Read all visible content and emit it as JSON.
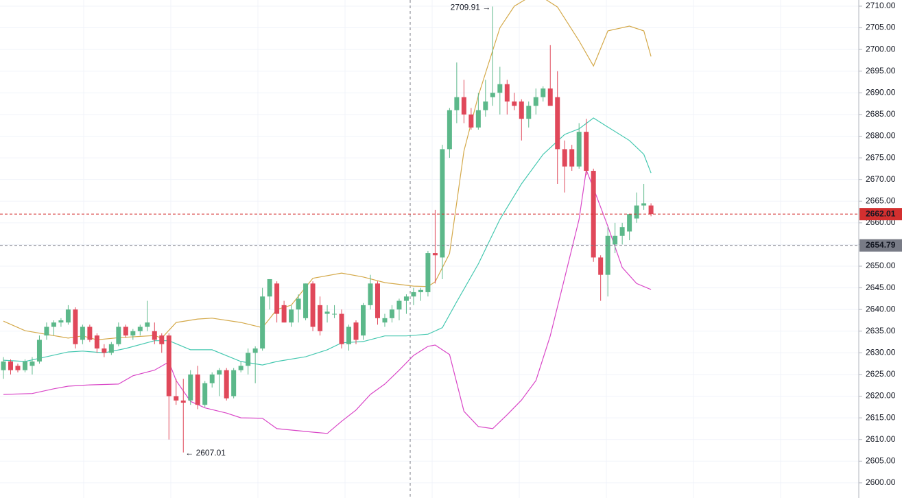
{
  "chart_data": {
    "type": "candlestick",
    "ylim": [
      2596.5,
      2711.42
    ],
    "yticks": [
      {
        "value": 2600,
        "label": "2600.00"
      },
      {
        "value": 2605,
        "label": "2605.00"
      },
      {
        "value": 2610,
        "label": "2610.00"
      },
      {
        "value": 2615,
        "label": "2615.00"
      },
      {
        "value": 2620,
        "label": "2620.00"
      },
      {
        "value": 2625,
        "label": "2625.00"
      },
      {
        "value": 2630,
        "label": "2630.00"
      },
      {
        "value": 2635,
        "label": "2635.00"
      },
      {
        "value": 2640,
        "label": "2640.00"
      },
      {
        "value": 2645,
        "label": "2645.00"
      },
      {
        "value": 2650,
        "label": "2650.00"
      },
      {
        "value": 2655,
        "label": "2655.00"
      },
      {
        "value": 2660,
        "label": "2660.00"
      },
      {
        "value": 2665,
        "label": "2665.00"
      },
      {
        "value": 2670,
        "label": "2670.00"
      },
      {
        "value": 2675,
        "label": "2675.00"
      },
      {
        "value": 2680,
        "label": "2680.00"
      },
      {
        "value": 2685,
        "label": "2685.00"
      },
      {
        "value": 2690,
        "label": "2690.00"
      },
      {
        "value": 2695,
        "label": "2695.00"
      },
      {
        "value": 2700,
        "label": "2700.00"
      },
      {
        "value": 2705,
        "label": "2705.00"
      },
      {
        "value": 2710,
        "label": "2710.00"
      }
    ],
    "grid": true,
    "up_color": "#5cb88a",
    "down_color": "#e0485a",
    "open": [
      2626,
      2628,
      2627,
      2626,
      2627,
      2628,
      2634,
      2636,
      2637,
      2637,
      2640,
      2633,
      2636,
      2634,
      2631,
      2630,
      2632,
      2636,
      2634,
      2635,
      2636,
      2635,
      2634,
      2634,
      2620,
      2619,
      2619,
      2625,
      2618,
      2623,
      2625,
      2626,
      2620,
      2626,
      2627,
      2630,
      2631,
      2643,
      2646,
      2641,
      2637,
      2640,
      2638,
      2646,
      2641,
      2639,
      2639,
      2639,
      2632,
      2637,
      2634,
      2641,
      2646,
      2637,
      2638,
      2640,
      2642,
      2643,
      2644,
      2644,
      2653,
      2652,
      2677,
      2686,
      2689,
      2685,
      2682,
      2686,
      2689,
      2690,
      2692,
      2688,
      2688,
      2684,
      2687,
      2689,
      2691,
      2689,
      2677,
      2677,
      2673,
      2681,
      2672,
      2652,
      2648,
      2655,
      2657,
      2658,
      2661,
      2664,
      2664
    ],
    "high": [
      2629,
      2628.5,
      2627.5,
      2628.5,
      2629,
      2634,
      2637,
      2637.5,
      2638,
      2641,
      2640.5,
      2636.5,
      2636.5,
      2634.5,
      2632,
      2632.5,
      2637,
      2636.5,
      2635.5,
      2636.5,
      2642,
      2637,
      2634.5,
      2634.5,
      2624,
      2624,
      2626,
      2627,
      2623.5,
      2625.5,
      2626.5,
      2626.5,
      2626.5,
      2628,
      2631,
      2631.5,
      2645,
      2647,
      2646.5,
      2642,
      2641,
      2643.5,
      2646,
      2646.5,
      2643,
      2641,
      2641,
      2640,
      2636.5,
      2637.5,
      2641.5,
      2648,
      2646.5,
      2639,
      2641,
      2642.5,
      2643.5,
      2645,
      2645,
      2653.5,
      2663,
      2678,
      2686.5,
      2697,
      2693,
      2686.5,
      2690,
      2693,
      2709.91,
      2696,
      2693,
      2690,
      2688.5,
      2688,
      2691,
      2691.5,
      2701,
      2695,
      2679,
      2678,
      2683,
      2684,
      2672.5,
      2652.5,
      2659,
      2660,
      2660,
      2662,
      2667,
      2669,
      2664.5
    ],
    "low": [
      2624,
      2625,
      2625.5,
      2625.5,
      2625,
      2627.5,
      2633,
      2634,
      2636,
      2636.5,
      2631,
      2632,
      2632.5,
      2630,
      2629,
      2629.5,
      2631.5,
      2633.5,
      2633,
      2634,
      2635,
      2632,
      2630,
      2610,
      2618,
      2607.01,
      2618,
      2617,
      2617.5,
      2622,
      2620,
      2619,
      2619.5,
      2625.5,
      2625,
      2623,
      2630.5,
      2640,
      2637,
      2637,
      2636,
      2637,
      2637.5,
      2635,
      2634,
      2637,
      2638,
      2631,
      2630.5,
      2632,
      2633,
      2640,
      2636.5,
      2636,
      2637,
      2637.5,
      2639,
      2641,
      2642,
      2643,
      2646,
      2647,
      2675,
      2683,
      2683,
      2681.5,
      2681.5,
      2684.5,
      2687,
      2685,
      2685,
      2686,
      2679,
      2682,
      2685,
      2688,
      2688,
      2669,
      2667,
      2672,
      2672.5,
      2671,
      2651,
      2642,
      2643,
      2653,
      2655,
      2656,
      2660,
      2663,
      2661.5
    ],
    "close": [
      2628,
      2626,
      2626,
      2628,
      2628,
      2633,
      2636,
      2637,
      2637.5,
      2640,
      2632,
      2636,
      2633,
      2631,
      2630,
      2632,
      2636,
      2634,
      2635,
      2636,
      2637,
      2633,
      2632,
      2620,
      2619,
      2618.5,
      2625,
      2618,
      2623,
      2625,
      2626,
      2619.5,
      2626,
      2627,
      2630,
      2631,
      2643,
      2647,
      2639,
      2637,
      2640,
      2642.5,
      2646,
      2636,
      2635,
      2639.5,
      2639,
      2632,
      2636,
      2633,
      2641,
      2646,
      2638,
      2638,
      2640,
      2642,
      2643,
      2644,
      2644.5,
      2653,
      2652.5,
      2677,
      2686,
      2689,
      2685,
      2682,
      2686,
      2688,
      2690,
      2692,
      2688,
      2687,
      2684,
      2687,
      2689,
      2691,
      2687,
      2677,
      2673,
      2673,
      2681,
      2672,
      2652,
      2648,
      2657,
      2657,
      2659,
      2662,
      2664,
      2664.5,
      2662.01
    ],
    "bands": [
      {
        "color": "#d4a94a",
        "x": [
          0,
          3,
          9,
          11,
          13,
          16,
          21,
          22,
          24,
          27,
          29,
          33,
          36,
          38,
          40,
          43,
          47,
          50,
          53,
          57,
          59,
          60,
          62,
          64,
          66,
          69,
          71,
          74,
          77,
          80,
          82,
          84,
          87,
          89,
          90
        ],
        "values": [
          2637.3,
          2635.1,
          2633.4,
          2633.9,
          2633.0,
          2633.5,
          2634.0,
          2633.4,
          2637.0,
          2637.8,
          2638.0,
          2637.0,
          2635.8,
          2640.0,
          2641.0,
          2647.2,
          2648.4,
          2647.5,
          2646.2,
          2645.4,
          2645.3,
          2646.4,
          2652.9,
          2676.6,
          2689.3,
          2705.0,
          2710.0,
          2713.0,
          2709.8,
          2702.0,
          2696.2,
          2704.3,
          2705.4,
          2704.3,
          2698.4
        ]
      },
      {
        "color": "#45c8b0",
        "x": [
          0,
          3,
          6,
          9,
          11,
          14,
          17,
          21,
          23,
          26,
          29,
          33,
          36,
          38,
          42,
          45,
          47,
          50,
          53,
          56,
          59,
          61,
          63,
          66,
          69,
          72,
          75,
          78,
          80,
          82,
          84,
          87,
          89,
          90
        ],
        "values": [
          2628.3,
          2628.0,
          2629.1,
          2630.2,
          2630.4,
          2630.0,
          2631.0,
          2632.8,
          2632.8,
          2630.7,
          2630.7,
          2628.0,
          2627.2,
          2628.0,
          2629.1,
          2630.7,
          2632.3,
          2632.6,
          2633.9,
          2633.9,
          2634.3,
          2635.8,
          2641.8,
          2650.5,
          2660.8,
          2669.0,
          2675.8,
          2680.4,
          2681.7,
          2684.2,
          2682.1,
          2679.0,
          2675.8,
          2671.5
        ]
      },
      {
        "color": "#d946c7",
        "x": [
          0,
          4,
          7,
          9,
          12,
          16,
          18,
          21,
          23,
          24,
          26,
          28,
          31,
          33,
          36,
          38,
          43,
          45,
          47,
          49,
          51,
          53,
          55,
          57,
          59,
          60,
          62,
          64,
          66,
          68,
          70,
          72,
          74,
          76,
          78,
          80,
          81,
          82,
          84,
          86,
          88,
          90
        ],
        "values": [
          2620.4,
          2620.6,
          2621.7,
          2622.3,
          2622.6,
          2622.8,
          2624.7,
          2626.0,
          2627.9,
          2623.6,
          2618.8,
          2617.3,
          2616.1,
          2615.0,
          2614.9,
          2612.5,
          2611.7,
          2611.4,
          2614.2,
          2616.8,
          2620.4,
          2622.8,
          2626.0,
          2629.4,
          2631.5,
          2631.8,
          2629.6,
          2616.5,
          2613.0,
          2612.5,
          2615.7,
          2619.1,
          2623.6,
          2633.9,
          2647.3,
          2660.8,
          2672.2,
          2668.0,
          2659.2,
          2649.7,
          2646.0,
          2644.6
        ]
      }
    ],
    "last_price": {
      "value": 2662.01,
      "color": "#d32f2f"
    },
    "crosshair_price": {
      "value": 2654.79,
      "color": "#787b86"
    },
    "annotations": [
      "2709.91 →",
      "← 2607.01"
    ]
  }
}
